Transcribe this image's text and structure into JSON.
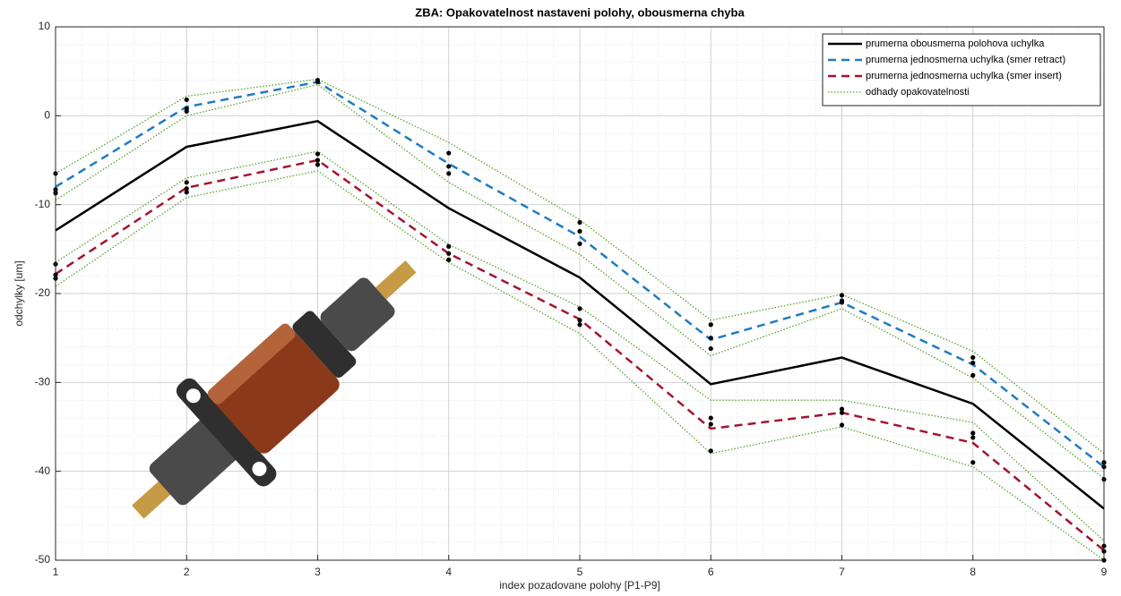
{
  "chart_data": {
    "type": "line",
    "title": "ZBA: Opakovatelnost nastaveni polohy, obousmerna chyba",
    "x_label": "index pozadovane polohy [P1-P9]",
    "y_label": "odchylky [um]",
    "x": [
      1,
      2,
      3,
      4,
      5,
      6,
      7,
      8,
      9
    ],
    "xlim": [
      1,
      9
    ],
    "xticks": [
      1,
      2,
      3,
      4,
      5,
      6,
      7,
      8,
      9
    ],
    "ylim": [
      -50,
      10
    ],
    "yticks": [
      -50,
      -40,
      -30,
      -20,
      -10,
      0,
      10
    ],
    "grid": true,
    "minor_grid": true,
    "legend": "upper right",
    "series": [
      {
        "name": "prumerna obousmerna polohova uchylka",
        "color": "#000000",
        "dash": "solid",
        "values": [
          -12.9,
          -3.5,
          -0.6,
          -10.4,
          -18.2,
          -30.2,
          -27.2,
          -32.4,
          -44.2
        ]
      },
      {
        "name": "prumerna jednosmerna uchylka (smer retract)",
        "color": "#1f7cc0",
        "dash": "dashed",
        "values": [
          -8,
          1,
          3.8,
          -5.4,
          -13.6,
          -25.2,
          -21,
          -28,
          -39.5
        ]
      },
      {
        "name": "prumerna jednosmerna uchylka (smer insert)",
        "color": "#a2142f",
        "dash": "dashed",
        "values": [
          -17.8,
          -8.1,
          -5,
          -15.5,
          -22.9,
          -35.2,
          -33.4,
          -36.8,
          -48.9
        ]
      }
    ],
    "bands": {
      "name": "odhady opakovatelnosti",
      "color": "#5aa02c",
      "lines": [
        [
          -6.5,
          2.2,
          4.1,
          -3,
          -11.7,
          -23,
          -20.1,
          -26.5,
          -38
        ],
        [
          -9.5,
          0,
          3.5,
          -7.5,
          -15.6,
          -27,
          -21.7,
          -29.5,
          -40.8
        ],
        [
          -16.5,
          -7,
          -4,
          -14.5,
          -21.5,
          -32,
          -32,
          -34.5,
          -47.8
        ],
        [
          -19.2,
          -9.2,
          -6.2,
          -16.5,
          -24.5,
          -38,
          -35,
          -39.5,
          -50
        ]
      ]
    },
    "points": {
      "x": [
        1,
        1,
        1,
        1,
        1,
        1,
        2,
        2,
        2,
        2,
        2,
        2,
        3,
        3,
        3,
        3,
        3,
        4,
        4,
        4,
        4,
        4,
        4,
        5,
        5,
        5,
        5,
        5,
        5,
        6,
        6,
        6,
        6,
        6,
        6,
        7,
        7,
        7,
        7,
        7,
        7,
        8,
        8,
        8,
        8,
        8,
        8,
        9,
        9,
        9,
        9,
        9,
        9
      ],
      "y": [
        -6.5,
        -8.3,
        -8.7,
        -16.7,
        -17.9,
        -18.3,
        1.8,
        0.8,
        0.5,
        -7.5,
        -8.2,
        -8.6,
        4,
        3.8,
        -4.3,
        -5,
        -5.5,
        -4.2,
        -5.7,
        -6.5,
        -14.7,
        -15.5,
        -16.2,
        -12,
        -13,
        -14.4,
        -21.7,
        -23,
        -23.5,
        -23.5,
        -25,
        -26.2,
        -34,
        -34.7,
        -37.7,
        -20.2,
        -20.8,
        -21,
        -33,
        -33.4,
        -34.8,
        -27.2,
        -27.8,
        -29.2,
        -35.7,
        -36.2,
        -39,
        -39,
        -39.5,
        -40.9,
        -48.4,
        -49,
        -50
      ]
    }
  }
}
